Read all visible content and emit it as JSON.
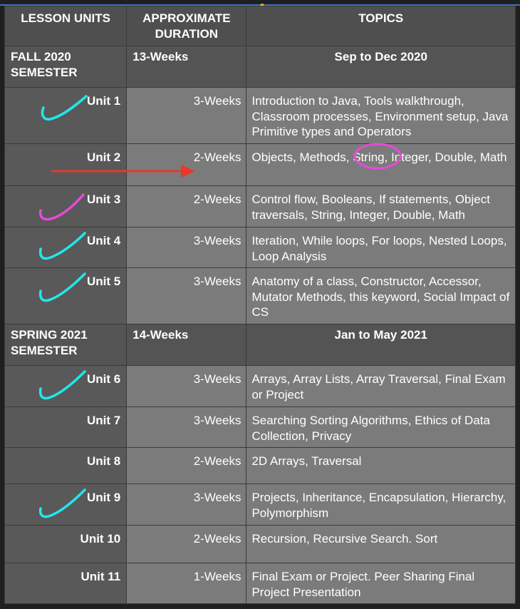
{
  "header": {
    "col1": "LESSON UNITS",
    "col2": "APPROXIMATE DURATION",
    "col3": "TOPICS"
  },
  "semesters": [
    {
      "name": "FALL 2020 SEMESTER",
      "duration": "13-Weeks",
      "dates": "Sep to Dec 2020",
      "units": [
        {
          "unit": "Unit 1",
          "duration": "3-Weeks",
          "topics": "Introduction to Java, Tools walkthrough, Classroom processes, Environment setup, Java Primitive types and Operators",
          "check": "cyan"
        },
        {
          "unit": "Unit 2",
          "duration": "2-Weeks",
          "topics_before": "Objects, Methods, ",
          "topics_circled": "String",
          "topics_after": ", Integer, Double, Math",
          "check": ""
        },
        {
          "unit": "Unit 3",
          "duration": "2-Weeks",
          "topics": "Control flow, Booleans, If statements, Object traversals, String, Integer, Double, Math",
          "check": "magenta"
        },
        {
          "unit": "Unit 4",
          "duration": "3-Weeks",
          "topics": "Iteration, While loops, For loops, Nested Loops, Loop Analysis",
          "check": "cyan"
        },
        {
          "unit": "Unit 5",
          "duration": "3-Weeks",
          "topics": "Anatomy of a class, Constructor, Accessor, Mutator Methods, this keyword, Social Impact of CS",
          "check": "cyan"
        }
      ]
    },
    {
      "name": "SPRING 2021 SEMESTER",
      "duration": "14-Weeks",
      "dates": "Jan to May 2021",
      "units": [
        {
          "unit": "Unit 6",
          "duration": "3-Weeks",
          "topics": "Arrays, Array Lists, Array Traversal, Final Exam or Project",
          "check": "cyan"
        },
        {
          "unit": "Unit 7",
          "duration": "3-Weeks",
          "topics": "Searching Sorting Algorithms, Ethics of Data Collection, Privacy",
          "check": ""
        },
        {
          "unit": "Unit 8",
          "duration": "2-Weeks",
          "topics": "2D Arrays, Traversal",
          "check": ""
        },
        {
          "unit": "Unit 9",
          "duration": "3-Weeks",
          "topics": "Projects, Inheritance, Encapsulation, Hierarchy, Polymorphism",
          "check": "cyan"
        },
        {
          "unit": "Unit 10",
          "duration": "2-Weeks",
          "topics": "Recursion, Recursive Search. Sort",
          "check": ""
        },
        {
          "unit": "Unit 11",
          "duration": "1-Weeks",
          "topics": "Final Exam or Project. Peer Sharing Final Project Presentation",
          "check": ""
        }
      ]
    }
  ],
  "colors": {
    "check_cyan": "#22e6ee",
    "check_magenta": "#e84ad8",
    "arrow": "#e8382a",
    "circle": "#e84ad8"
  }
}
